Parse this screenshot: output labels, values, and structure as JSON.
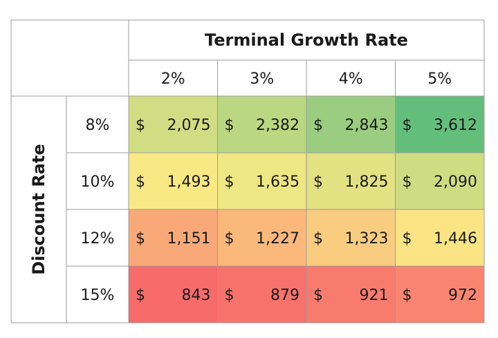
{
  "chart_data": {
    "type": "heatmap",
    "column_axis_title": "Terminal Growth Rate",
    "row_axis_title": "Discount Rate",
    "columns": [
      "2%",
      "3%",
      "4%",
      "5%"
    ],
    "rows": [
      "8%",
      "10%",
      "12%",
      "15%"
    ],
    "currency_symbol": "$",
    "values": [
      [
        2075,
        2382,
        2843,
        3612
      ],
      [
        1493,
        1635,
        1825,
        2090
      ],
      [
        1151,
        1227,
        1323,
        1446
      ],
      [
        843,
        879,
        921,
        972
      ]
    ],
    "display_values": [
      [
        "2,075",
        "2,382",
        "2,843",
        "3,612"
      ],
      [
        "1,493",
        "1,635",
        "1,825",
        "2,090"
      ],
      [
        "1,151",
        "1,227",
        "1,323",
        "1,446"
      ],
      [
        "843",
        "879",
        "921",
        "972"
      ]
    ],
    "color_scale": {
      "low": "#f86b6b",
      "mid": "#fbe985",
      "high": "#63be7b"
    },
    "grid_color": "#9b9b9b",
    "text_color": "#1a1a1a"
  }
}
